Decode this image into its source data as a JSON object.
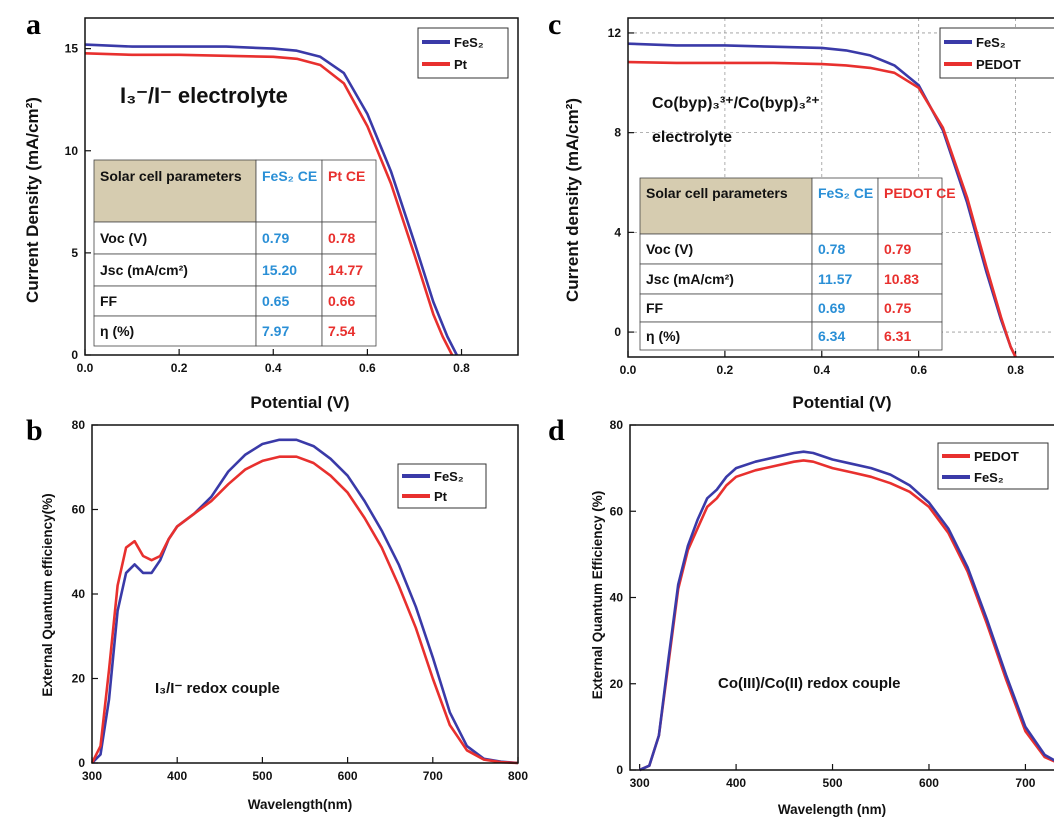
{
  "colors": {
    "fes2": "#3a3aa8",
    "ref": "#e8302e",
    "fes2_text": "#2a8fd6",
    "ref_text": "#e8302e",
    "table_header": "#d6ccb0"
  },
  "panels": {
    "a": {
      "letter": "a",
      "xlabel": "Potential (V)",
      "ylabel": "Current Density (mA/cm²)",
      "annotation": "I₃⁻/I⁻ electrolyte",
      "legend": [
        "FeS₂",
        "Pt"
      ],
      "table": {
        "header": [
          "Solar cell parameters",
          "FeS₂ CE",
          "Pt CE"
        ],
        "rows": [
          [
            "Voc (V)",
            "0.79",
            "0.78"
          ],
          [
            "Jsc (mA/cm²)",
            "15.20",
            "14.77"
          ],
          [
            "FF",
            "0.65",
            "0.66"
          ],
          [
            "η (%)",
            "7.97",
            "7.54"
          ]
        ]
      }
    },
    "b": {
      "letter": "b",
      "xlabel": "Wavelength(nm)",
      "ylabel": "External Quantum efficiency(%)",
      "annotation": "I₃/I⁻ redox couple",
      "legend": [
        "FeS₂",
        "Pt"
      ]
    },
    "c": {
      "letter": "c",
      "xlabel": "Potential (V)",
      "ylabel": "Current density (mA/cm²)",
      "annotation_line1": "Co(byp)₃³⁺/Co(byp)₃²⁺",
      "annotation_line2": "electrolyte",
      "legend": [
        "FeS₂",
        "PEDOT"
      ],
      "table": {
        "header": [
          "Solar cell parameters",
          "FeS₂ CE",
          "PEDOT CE"
        ],
        "rows": [
          [
            "Voc (V)",
            "0.78",
            "0.79"
          ],
          [
            "Jsc (mA/cm²)",
            "11.57",
            "10.83"
          ],
          [
            "FF",
            "0.69",
            "0.75"
          ],
          [
            "η (%)",
            "6.34",
            "6.31"
          ]
        ]
      }
    },
    "d": {
      "letter": "d",
      "xlabel": "Wavelength (nm)",
      "ylabel": "External Quantum Efficiency (%)",
      "annotation": "Co(III)/Co(II) redox couple",
      "legend": [
        "PEDOT",
        "FeS₂"
      ]
    }
  },
  "chart_data": [
    {
      "panel": "a",
      "type": "line",
      "xlabel": "Potential (V)",
      "ylabel": "Current Density (mA/cm²)",
      "xlim": [
        0,
        0.92
      ],
      "ylim": [
        0,
        16.5
      ],
      "xticks": [
        "0.0",
        "0.2",
        "0.4",
        "0.6",
        "0.8"
      ],
      "yticks": [
        "0",
        "5",
        "10",
        "15"
      ],
      "series": [
        {
          "name": "FeS₂",
          "x": [
            0,
            0.1,
            0.2,
            0.3,
            0.4,
            0.45,
            0.5,
            0.55,
            0.6,
            0.65,
            0.7,
            0.74,
            0.77,
            0.79
          ],
          "y": [
            15.2,
            15.1,
            15.1,
            15.1,
            15.0,
            14.9,
            14.6,
            13.8,
            11.8,
            9.0,
            5.5,
            2.6,
            0.9,
            0
          ]
        },
        {
          "name": "Pt",
          "x": [
            0,
            0.1,
            0.2,
            0.3,
            0.4,
            0.45,
            0.5,
            0.55,
            0.6,
            0.65,
            0.7,
            0.74,
            0.76,
            0.78
          ],
          "y": [
            14.77,
            14.7,
            14.7,
            14.65,
            14.6,
            14.5,
            14.2,
            13.3,
            11.2,
            8.4,
            4.9,
            2.0,
            0.9,
            0
          ]
        }
      ]
    },
    {
      "panel": "b",
      "type": "line",
      "xlabel": "Wavelength(nm)",
      "ylabel": "External Quantum efficiency(%)",
      "xlim": [
        300,
        800
      ],
      "ylim": [
        0,
        80
      ],
      "xticks": [
        "300",
        "400",
        "500",
        "600",
        "700",
        "800"
      ],
      "yticks": [
        "0",
        "20",
        "40",
        "60",
        "80"
      ],
      "series": [
        {
          "name": "FeS₂",
          "x": [
            300,
            310,
            320,
            330,
            340,
            350,
            360,
            370,
            380,
            390,
            400,
            420,
            440,
            460,
            480,
            500,
            520,
            540,
            560,
            580,
            600,
            620,
            640,
            660,
            680,
            700,
            720,
            740,
            760,
            780,
            800
          ],
          "y": [
            0,
            2,
            15,
            36,
            45,
            47,
            45,
            45,
            48,
            53,
            56,
            59,
            63,
            69,
            73,
            75.5,
            76.5,
            76.5,
            75,
            72,
            68,
            62,
            55,
            47,
            37,
            25,
            12,
            4,
            1,
            0.3,
            0
          ]
        },
        {
          "name": "Pt",
          "x": [
            300,
            310,
            320,
            330,
            340,
            350,
            360,
            370,
            380,
            390,
            400,
            420,
            440,
            460,
            480,
            500,
            520,
            540,
            560,
            580,
            600,
            620,
            640,
            660,
            680,
            700,
            720,
            740,
            760,
            780,
            800
          ],
          "y": [
            0,
            4,
            22,
            42,
            51,
            52.5,
            49,
            48,
            49,
            53,
            56,
            59,
            62,
            66,
            69.5,
            71.5,
            72.5,
            72.5,
            71,
            68,
            64,
            58,
            51,
            42,
            32,
            20,
            9,
            3,
            0.8,
            0.2,
            0
          ]
        }
      ]
    },
    {
      "panel": "c",
      "type": "line",
      "xlabel": "Potential (V)",
      "ylabel": "Current density (mA/cm²)",
      "xlim": [
        0,
        0.9
      ],
      "ylim": [
        -1,
        12.6
      ],
      "xticks": [
        "0.0",
        "0.2",
        "0.4",
        "0.6",
        "0.8"
      ],
      "yticks": [
        "0",
        "4",
        "8",
        "12"
      ],
      "series": [
        {
          "name": "FeS₂",
          "x": [
            0,
            0.1,
            0.2,
            0.3,
            0.4,
            0.45,
            0.5,
            0.55,
            0.6,
            0.65,
            0.7,
            0.74,
            0.77,
            0.79,
            0.8
          ],
          "y": [
            11.57,
            11.5,
            11.5,
            11.45,
            11.4,
            11.3,
            11.1,
            10.7,
            9.9,
            8.1,
            5.2,
            2.4,
            0.5,
            -0.6,
            -1
          ]
        },
        {
          "name": "PEDOT",
          "x": [
            0,
            0.1,
            0.2,
            0.3,
            0.4,
            0.45,
            0.5,
            0.55,
            0.6,
            0.65,
            0.7,
            0.74,
            0.77,
            0.79,
            0.8
          ],
          "y": [
            10.83,
            10.8,
            10.8,
            10.8,
            10.75,
            10.7,
            10.6,
            10.4,
            9.8,
            8.2,
            5.4,
            2.6,
            0.6,
            -0.6,
            -1
          ]
        }
      ]
    },
    {
      "panel": "d",
      "type": "line",
      "xlabel": "Wavelength (nm)",
      "ylabel": "External Quantum Efficiency (%)",
      "xlim": [
        290,
        740
      ],
      "ylim": [
        0,
        80
      ],
      "xticks": [
        "300",
        "400",
        "500",
        "600",
        "700"
      ],
      "yticks": [
        "0",
        "20",
        "40",
        "60",
        "80"
      ],
      "series": [
        {
          "name": "PEDOT",
          "x": [
            300,
            310,
            320,
            330,
            340,
            350,
            360,
            370,
            380,
            390,
            400,
            420,
            440,
            460,
            470,
            480,
            500,
            520,
            540,
            560,
            580,
            600,
            620,
            640,
            660,
            680,
            700,
            720,
            740
          ],
          "y": [
            0,
            1,
            8,
            25,
            42,
            51,
            56,
            61,
            63,
            66,
            68,
            69.5,
            70.5,
            71.5,
            71.8,
            71.5,
            70,
            69,
            68,
            66.5,
            64.5,
            61,
            55,
            46,
            34,
            21,
            9,
            3,
            1
          ]
        },
        {
          "name": "FeS₂",
          "x": [
            300,
            310,
            320,
            330,
            340,
            350,
            360,
            370,
            380,
            390,
            400,
            420,
            440,
            460,
            470,
            480,
            500,
            520,
            540,
            560,
            580,
            600,
            620,
            640,
            660,
            680,
            700,
            720,
            740
          ],
          "y": [
            0,
            1,
            8,
            26,
            43,
            52,
            58,
            63,
            65,
            68,
            70,
            71.5,
            72.5,
            73.5,
            73.8,
            73.5,
            72,
            71,
            70,
            68.5,
            66,
            62,
            56,
            47,
            35,
            22,
            10,
            3.5,
            1
          ]
        }
      ]
    }
  ]
}
